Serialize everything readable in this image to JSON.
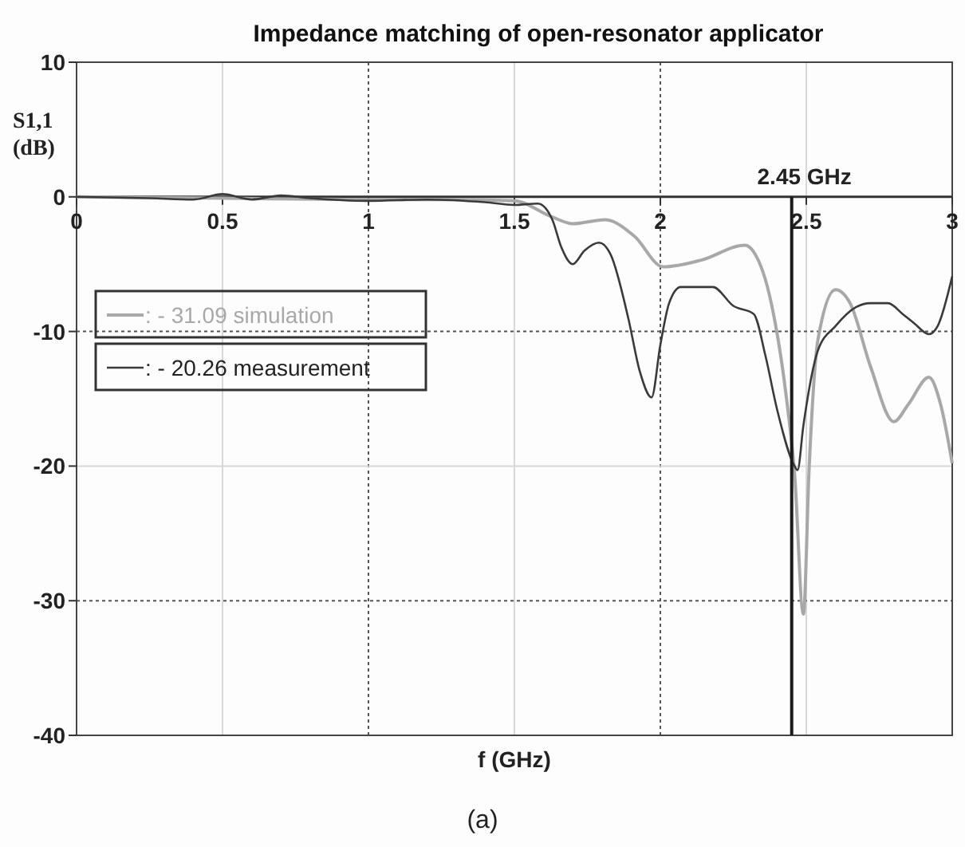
{
  "chart_data": {
    "type": "line",
    "title": "Impedance matching of open-resonator applicator",
    "xlabel": "f (GHz)",
    "ylabel": "S1,1\n(dB)",
    "xlim": [
      0,
      3
    ],
    "xticks": [
      0,
      0.5,
      1,
      1.5,
      2,
      2.5,
      3
    ],
    "ylim": [
      -40,
      10
    ],
    "yticks": [
      10,
      0,
      -10,
      -20,
      -30,
      -40
    ],
    "grid": true,
    "legend": "top left",
    "line_style": "solid",
    "marker": "none",
    "ref_lines": [
      {
        "axis": "x",
        "value": 2.45,
        "label": "2.45 GHz",
        "color": "#1a1a1a"
      }
    ],
    "annotations": [
      "(a)"
    ],
    "series": [
      {
        "name": ": - 31.09 simulation",
        "color": "#a8a8a8",
        "x": [
          0,
          0.5,
          1,
          1.3,
          1.5,
          1.63,
          1.7,
          1.81,
          1.91,
          2.01,
          2.14,
          2.29,
          2.32,
          2.38,
          2.43,
          2.46,
          2.49,
          2.51,
          2.54,
          2.6,
          2.65,
          2.72,
          2.8,
          2.85,
          2.92,
          2.96,
          3
        ],
        "values": [
          0,
          -0.1,
          -0.2,
          -0.2,
          -0.3,
          -1.5,
          -2,
          -1.7,
          -2.9,
          -5.2,
          -4.7,
          -3.6,
          -4.1,
          -7.9,
          -14.6,
          -20.6,
          -31,
          -20,
          -10.6,
          -6.9,
          -7.9,
          -12.6,
          -16.7,
          -15.4,
          -13.4,
          -15.4,
          -19.8
        ]
      },
      {
        "name": ": - 20.26 measurement",
        "color": "#3a3a3a",
        "x": [
          0,
          0.25,
          0.4,
          0.5,
          0.6,
          0.7,
          0.8,
          1,
          1.2,
          1.4,
          1.5,
          1.58,
          1.63,
          1.66,
          1.7,
          1.74,
          1.79,
          1.83,
          1.89,
          1.93,
          1.97,
          2,
          2.03,
          2.07,
          2.18,
          2.25,
          2.32,
          2.36,
          2.4,
          2.46,
          2.47,
          2.49,
          2.54,
          2.6,
          2.67,
          2.72,
          2.78,
          2.83,
          2.87,
          2.92,
          2.95,
          3
        ],
        "values": [
          0,
          -0.1,
          -0.2,
          0.2,
          -0.2,
          0.1,
          -0.1,
          -0.3,
          -0.2,
          -0.4,
          -0.6,
          -0.5,
          -1.7,
          -3.7,
          -5,
          -4,
          -3.4,
          -4.3,
          -9,
          -13,
          -14.9,
          -11,
          -7.9,
          -6.7,
          -6.7,
          -8.1,
          -8.7,
          -11.8,
          -15.8,
          -20,
          -20.3,
          -17,
          -11.4,
          -9.6,
          -8.2,
          -7.9,
          -7.9,
          -8.7,
          -9.4,
          -10.2,
          -9.6,
          -5.9
        ]
      }
    ]
  }
}
